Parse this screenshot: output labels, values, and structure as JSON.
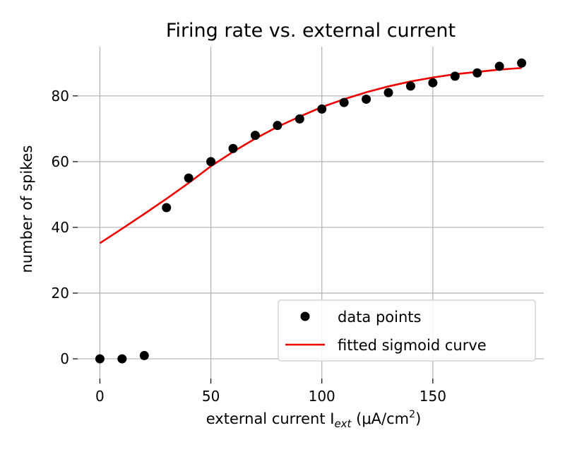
{
  "chart_data": {
    "type": "scatter",
    "title": "Firing rate vs. external current",
    "xlabel": "external current I",
    "xlabel_subscript": "ext",
    "xlabel_units_prefix": " (μA/cm",
    "xlabel_units_sup": "2",
    "xlabel_units_suffix": ")",
    "ylabel": "number of spikes",
    "xlim": [
      -10,
      200
    ],
    "ylim": [
      -6,
      95
    ],
    "xticks": [
      0,
      50,
      100,
      150
    ],
    "yticks": [
      0,
      20,
      40,
      60,
      80
    ],
    "grid": true,
    "legend_position": "lower-right",
    "series": [
      {
        "name": "data points",
        "kind": "scatter",
        "color": "#000000",
        "x": [
          0,
          10,
          20,
          30,
          40,
          50,
          60,
          70,
          80,
          90,
          100,
          110,
          120,
          130,
          140,
          150,
          160,
          170,
          180,
          190
        ],
        "y": [
          0,
          0,
          1,
          46,
          55,
          60,
          64,
          68,
          71,
          73,
          76,
          78,
          79,
          81,
          83,
          84,
          86,
          87,
          89,
          90
        ]
      },
      {
        "name": "fitted sigmoid curve",
        "kind": "line",
        "color": "#ee0000",
        "x": [
          0,
          10,
          20,
          30,
          40,
          50,
          60,
          70,
          80,
          90,
          100,
          110,
          120,
          130,
          140,
          150,
          160,
          170,
          180,
          190
        ],
        "y": [
          35.2,
          39.6,
          44.1,
          48.7,
          53.5,
          58.6,
          63.0,
          67.0,
          70.6,
          73.7,
          76.6,
          79.0,
          81.1,
          82.9,
          84.4,
          85.6,
          86.6,
          87.3,
          88.0,
          88.5
        ]
      }
    ]
  }
}
